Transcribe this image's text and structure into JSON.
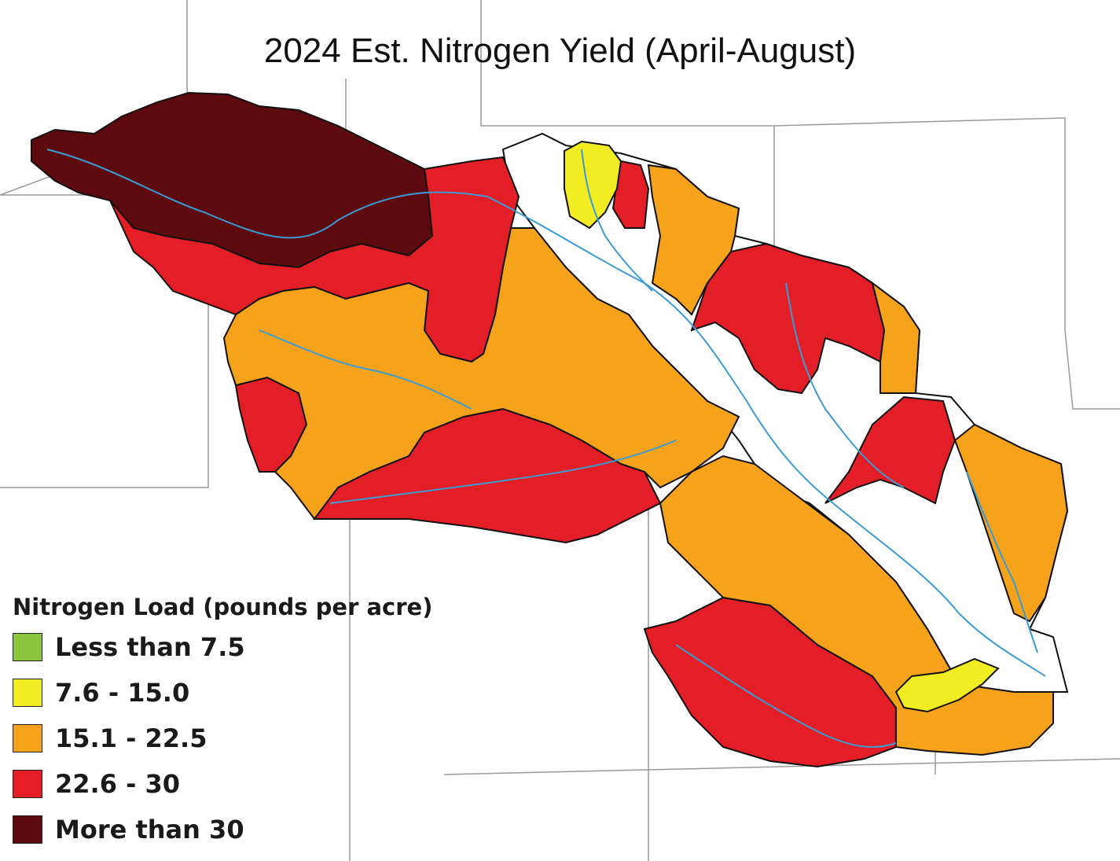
{
  "title": "2024 Est. Nitrogen Yield (April-August)",
  "legend": {
    "title": "Nitrogen Load (pounds per acre)",
    "items": [
      {
        "label": "Less than 7.5",
        "color": "#8dc63f"
      },
      {
        "label": "7.6 - 15.0",
        "color": "#f2ec23"
      },
      {
        "label": "15.1 - 22.5",
        "color": "#f7a21b"
      },
      {
        "label": "22.6 - 30",
        "color": "#e31e26"
      },
      {
        "label": "More than 30",
        "color": "#5c0a0e"
      }
    ]
  },
  "colors": {
    "no_data": "#ffffff",
    "stream": "#3a9bd5",
    "boundary": "#111111",
    "state_line": "#9a9a9a"
  }
}
